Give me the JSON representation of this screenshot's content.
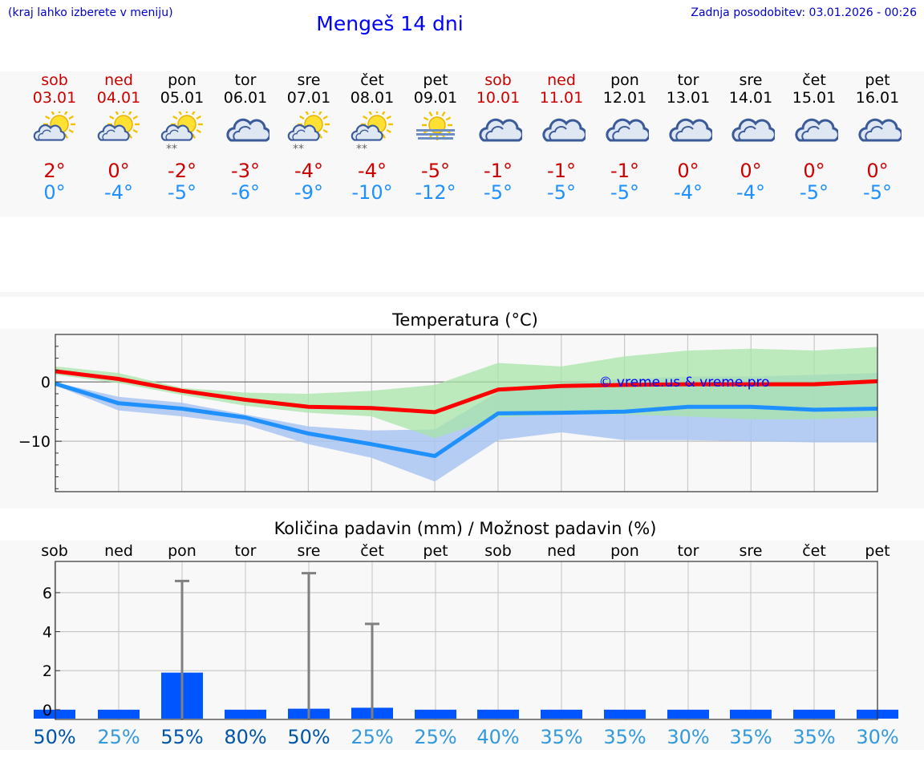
{
  "header": {
    "left_note": "(kraj lahko izberete v meniju)",
    "title": "Mengeš 14 dni",
    "updated": "Zadnja posodobitev: 03.01.2026 - 00:26"
  },
  "days": [
    {
      "name": "sob",
      "date": "03.01",
      "weekend": true,
      "icon": "partly-cloudy-icon",
      "tmax": "2°",
      "tmin": "0°"
    },
    {
      "name": "ned",
      "date": "04.01",
      "weekend": true,
      "icon": "partly-cloudy-icon",
      "tmax": "0°",
      "tmin": "-4°"
    },
    {
      "name": "pon",
      "date": "05.01",
      "weekend": false,
      "icon": "partly-cloudy-snow-icon",
      "tmax": "-2°",
      "tmin": "-5°"
    },
    {
      "name": "tor",
      "date": "06.01",
      "weekend": false,
      "icon": "cloudy-icon",
      "tmax": "-3°",
      "tmin": "-6°"
    },
    {
      "name": "sre",
      "date": "07.01",
      "weekend": false,
      "icon": "partly-cloudy-snow-icon",
      "tmax": "-4°",
      "tmin": "-9°"
    },
    {
      "name": "čet",
      "date": "08.01",
      "weekend": false,
      "icon": "partly-cloudy-snow-icon",
      "tmax": "-4°",
      "tmin": "-10°"
    },
    {
      "name": "pet",
      "date": "09.01",
      "weekend": false,
      "icon": "sun-fog-icon",
      "tmax": "-5°",
      "tmin": "-12°"
    },
    {
      "name": "sob",
      "date": "10.01",
      "weekend": true,
      "icon": "cloudy-icon",
      "tmax": "-1°",
      "tmin": "-5°"
    },
    {
      "name": "ned",
      "date": "11.01",
      "weekend": true,
      "icon": "cloudy-icon",
      "tmax": "-1°",
      "tmin": "-5°"
    },
    {
      "name": "pon",
      "date": "12.01",
      "weekend": false,
      "icon": "cloudy-icon",
      "tmax": "-1°",
      "tmin": "-5°"
    },
    {
      "name": "tor",
      "date": "13.01",
      "weekend": false,
      "icon": "cloudy-icon",
      "tmax": "0°",
      "tmin": "-4°"
    },
    {
      "name": "sre",
      "date": "14.01",
      "weekend": false,
      "icon": "cloudy-icon",
      "tmax": "0°",
      "tmin": "-4°"
    },
    {
      "name": "čet",
      "date": "15.01",
      "weekend": false,
      "icon": "cloudy-icon",
      "tmax": "0°",
      "tmin": "-5°"
    },
    {
      "name": "pet",
      "date": "16.01",
      "weekend": false,
      "icon": "cloudy-icon",
      "tmax": "0°",
      "tmin": "-5°"
    }
  ],
  "colors": {
    "weekend": "#cc0000",
    "max_line": "#ff0000",
    "min_line": "#1e90ff",
    "max_band": "#a8e6a8",
    "min_band": "#a9c4f2",
    "bar": "#0055ff",
    "whisker": "#808080",
    "pct_low": "#3399dd",
    "pct_high": "#0055aa"
  },
  "chart_data": [
    {
      "type": "line",
      "title": "Temperatura (°C)",
      "xlabel": "",
      "ylabel": "",
      "ylim": [
        -18.5,
        8
      ],
      "yticks": [
        0,
        -10
      ],
      "ytick_labels": [
        "0",
        "−10"
      ],
      "grid": true,
      "watermark": "© vreme.us & vreme.pro",
      "x": [
        0,
        1,
        2,
        3,
        4,
        5,
        6,
        7,
        8,
        9,
        10,
        11,
        12,
        13
      ],
      "series": [
        {
          "name": "max",
          "values": [
            1.8,
            0.5,
            -1.5,
            -3.0,
            -4.2,
            -4.4,
            -5.1,
            -1.3,
            -0.7,
            -0.5,
            -0.4,
            -0.4,
            -0.4,
            0.1
          ]
        },
        {
          "name": "min",
          "values": [
            -0.3,
            -3.6,
            -4.5,
            -6.0,
            -8.7,
            -10.5,
            -12.5,
            -5.3,
            -5.2,
            -5.0,
            -4.2,
            -4.2,
            -4.7,
            -4.5
          ]
        }
      ],
      "bands": [
        {
          "name": "max_range",
          "lower": [
            1.2,
            -0.2,
            -2.2,
            -4.0,
            -5.2,
            -5.8,
            -9.5,
            -6.0,
            -5.5,
            -5.5,
            -5.8,
            -6.3,
            -6.3,
            -5.9
          ],
          "upper": [
            2.6,
            1.5,
            -1.0,
            -1.8,
            -2.0,
            -1.5,
            -0.5,
            3.2,
            2.6,
            4.3,
            5.3,
            5.6,
            5.3,
            5.9
          ]
        },
        {
          "name": "min_range",
          "lower": [
            -0.6,
            -4.8,
            -5.8,
            -7.2,
            -10.5,
            -12.8,
            -16.8,
            -9.8,
            -8.5,
            -9.8,
            -9.8,
            -10.0,
            -10.2,
            -10.2
          ],
          "upper": [
            -0.1,
            -2.5,
            -3.5,
            -5.5,
            -7.5,
            -8.2,
            -8.0,
            -1.7,
            -0.3,
            0.5,
            0.9,
            0.9,
            1.2,
            1.5
          ]
        }
      ]
    },
    {
      "type": "bar",
      "title": "Količina padavin (mm) / Možnost padavin (%)",
      "categories": [
        "sob",
        "ned",
        "pon",
        "tor",
        "sre",
        "čet",
        "pet",
        "sob",
        "ned",
        "pon",
        "tor",
        "sre",
        "čet",
        "pet"
      ],
      "ylim": [
        -0.5,
        7.6
      ],
      "yticks": [
        0,
        2,
        4,
        6
      ],
      "grid": true,
      "values": [
        0,
        0,
        1.9,
        0,
        0.05,
        0.1,
        0,
        0,
        0,
        0,
        0,
        0,
        0,
        0
      ],
      "error_high": [
        0,
        0,
        6.6,
        0,
        7.0,
        4.4,
        0,
        0,
        0,
        0,
        0,
        0,
        0,
        0
      ],
      "probability": [
        "50%",
        "25%",
        "55%",
        "80%",
        "50%",
        "25%",
        "25%",
        "40%",
        "35%",
        "35%",
        "30%",
        "35%",
        "35%",
        "30%"
      ]
    }
  ]
}
